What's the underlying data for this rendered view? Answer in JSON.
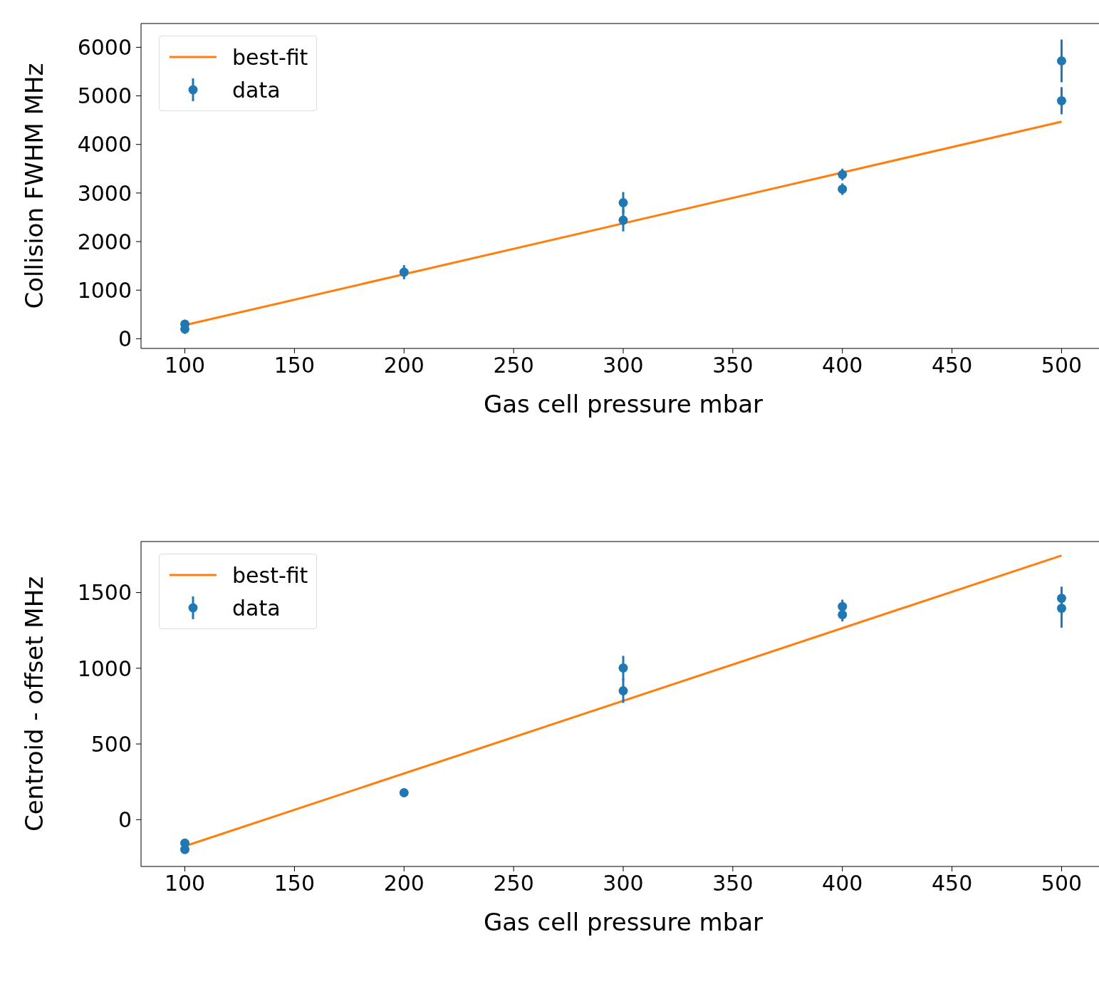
{
  "chart_data": [
    {
      "type": "scatter",
      "xlabel": "Gas cell pressure mbar",
      "ylabel": "Collision FWHM MHz",
      "xlim": [
        80,
        520
      ],
      "xticks": [
        100,
        150,
        200,
        250,
        300,
        350,
        400,
        450,
        500
      ],
      "ylim": [
        -200,
        6490
      ],
      "yticks": [
        0,
        1000,
        2000,
        3000,
        4000,
        5000,
        6000
      ],
      "legend": "top left",
      "grid": false,
      "series": [
        {
          "name": "best-fit",
          "type": "line",
          "marker": "none",
          "color": "#ff7f0e",
          "x": [
            100,
            500
          ],
          "values": [
            280,
            4470
          ]
        },
        {
          "name": "data",
          "marker": "circle",
          "color": "#1f77b4",
          "x": [
            100,
            100,
            200,
            300,
            300,
            400,
            400,
            500,
            500
          ],
          "values": [
            300,
            200,
            1370,
            2800,
            2440,
            3380,
            3080,
            5720,
            4900
          ],
          "errors": [
            90,
            100,
            145,
            220,
            230,
            120,
            120,
            440,
            280
          ]
        }
      ]
    },
    {
      "type": "scatter",
      "xlabel": "Gas cell pressure mbar",
      "ylabel": "Centroid - offset MHz",
      "xlim": [
        80,
        520
      ],
      "xticks": [
        100,
        150,
        200,
        250,
        300,
        350,
        400,
        450,
        500
      ],
      "ylim": [
        -309,
        1837
      ],
      "yticks": [
        0,
        500,
        1000,
        1500
      ],
      "legend": "top left",
      "grid": false,
      "series": [
        {
          "name": "best-fit",
          "type": "line",
          "marker": "none",
          "color": "#ff7f0e",
          "x": [
            100,
            500
          ],
          "values": [
            -175,
            1745
          ]
        },
        {
          "name": "data",
          "marker": "circle",
          "color": "#1f77b4",
          "x": [
            100,
            100,
            200,
            300,
            300,
            400,
            400,
            500,
            500
          ],
          "values": [
            -155,
            -197,
            178,
            1002,
            851,
            1408,
            1354,
            1462,
            1396
          ],
          "errors": [
            15,
            15,
            25,
            80,
            80,
            45,
            45,
            77,
            128
          ]
        }
      ]
    }
  ]
}
